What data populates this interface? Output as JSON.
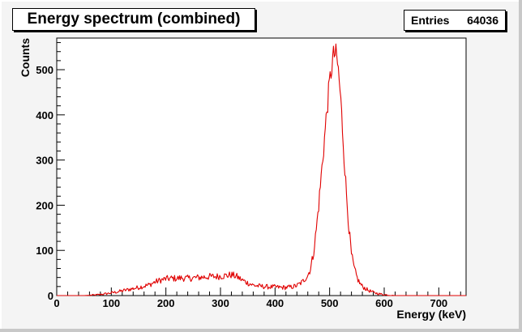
{
  "title": "Energy spectrum (combined)",
  "stats": {
    "entries_label": "Entries",
    "entries_value": "64036"
  },
  "chart_data": {
    "type": "histogram",
    "title": "Energy spectrum (combined)",
    "xlabel": "Energy (keV)",
    "ylabel": "Counts",
    "xlim": [
      0,
      750
    ],
    "ylim": [
      0,
      570
    ],
    "xticks": [
      0,
      100,
      200,
      300,
      400,
      500,
      600,
      700
    ],
    "yticks": [
      0,
      100,
      200,
      300,
      400,
      500
    ],
    "line_color": "#e00000",
    "x": [
      0,
      50,
      70,
      90,
      110,
      130,
      150,
      170,
      180,
      190,
      200,
      210,
      220,
      230,
      240,
      250,
      260,
      270,
      280,
      290,
      300,
      310,
      320,
      330,
      340,
      350,
      360,
      370,
      380,
      390,
      400,
      410,
      420,
      430,
      440,
      450,
      460,
      465,
      470,
      475,
      480,
      485,
      490,
      495,
      500,
      503,
      506,
      509,
      512,
      515,
      518,
      521,
      524,
      527,
      530,
      533,
      536,
      540,
      545,
      550,
      555,
      560,
      570,
      580,
      590,
      600,
      610,
      620,
      630,
      640,
      650,
      660,
      680,
      700,
      750
    ],
    "y": [
      0,
      0,
      1,
      4,
      8,
      13,
      18,
      24,
      30,
      34,
      37,
      38,
      38,
      39,
      38,
      39,
      40,
      41,
      42,
      42,
      43,
      44,
      46,
      42,
      34,
      28,
      23,
      21,
      20,
      19,
      19,
      18,
      18,
      19,
      22,
      30,
      45,
      60,
      90,
      140,
      200,
      270,
      340,
      410,
      470,
      500,
      525,
      535,
      530,
      510,
      470,
      420,
      360,
      300,
      240,
      190,
      140,
      90,
      60,
      40,
      28,
      20,
      12,
      7,
      4,
      2,
      1,
      0,
      0,
      0,
      0,
      0,
      0,
      0,
      0
    ]
  }
}
